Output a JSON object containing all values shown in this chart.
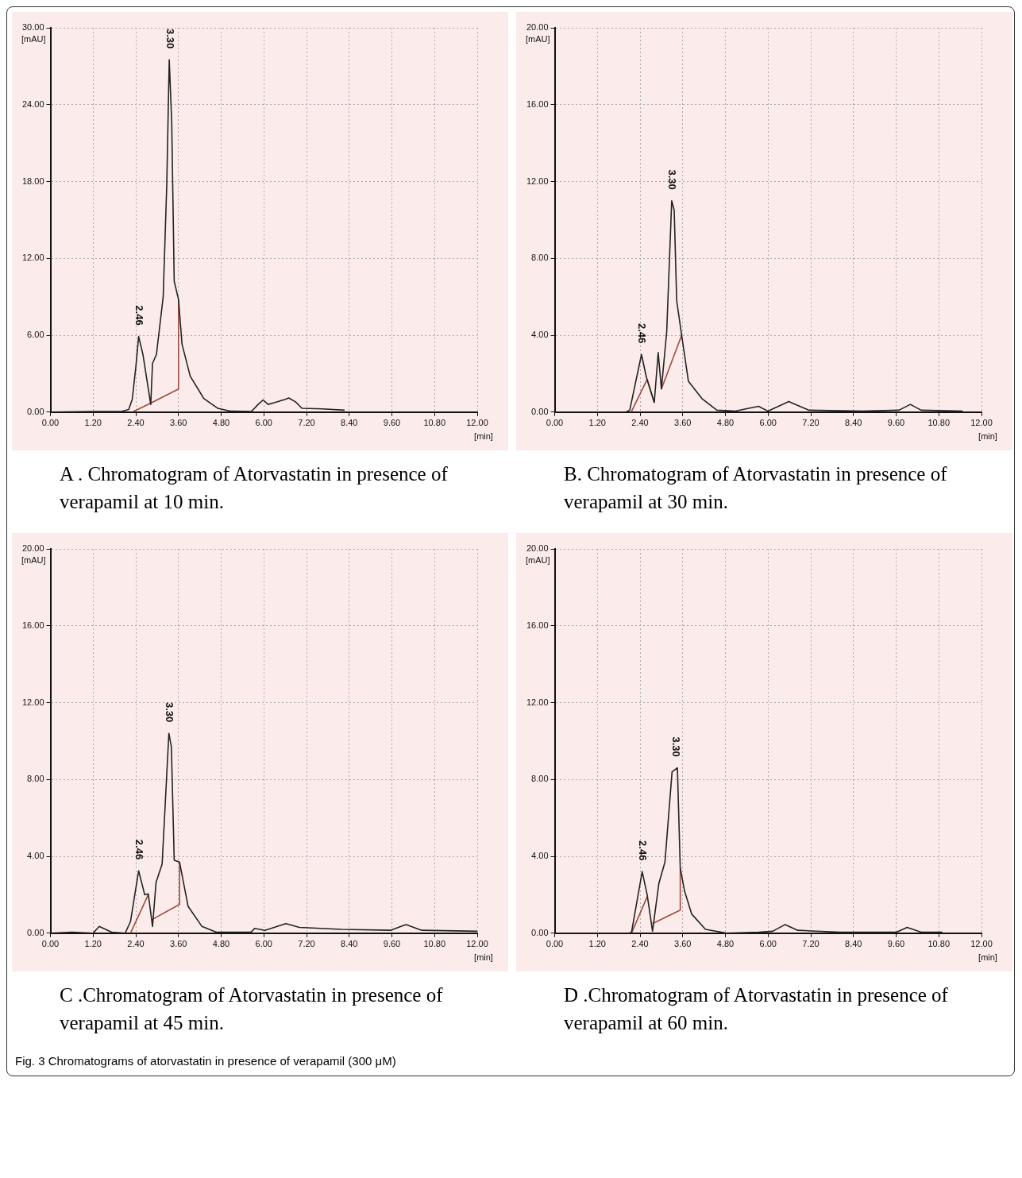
{
  "chart_data": [
    {
      "type": "line",
      "title": "A . Chromatogram of Atorvastatin in presence of verapamil at 10 min.",
      "xlabel": "[min]",
      "ylabel": "[mAU]",
      "xlim": [
        0,
        12
      ],
      "ylim": [
        0,
        30
      ],
      "xticks": [
        {
          "value": 0,
          "label": "0.00"
        },
        {
          "value": 1.2,
          "label": "1.20"
        },
        {
          "value": 2.4,
          "label": "2.40"
        },
        {
          "value": 3.6,
          "label": "3.60"
        },
        {
          "value": 4.8,
          "label": "4.80"
        },
        {
          "value": 6,
          "label": "6.00"
        },
        {
          "value": 7.2,
          "label": "7.20"
        },
        {
          "value": 8.4,
          "label": "8.40"
        },
        {
          "value": 9.6,
          "label": "9.60"
        },
        {
          "value": 10.8,
          "label": "10.80"
        },
        {
          "value": 12,
          "label": "12.00"
        }
      ],
      "yticks": [
        {
          "value": 0,
          "label": "0.00"
        },
        {
          "value": 6,
          "label": "6.00"
        },
        {
          "value": 12,
          "label": "12.00"
        },
        {
          "value": 18,
          "label": "18.00"
        },
        {
          "value": 24,
          "label": "24.00"
        },
        {
          "value": 30,
          "label": "30.00"
        }
      ],
      "grid": true,
      "annotations": [
        {
          "text": "2.46",
          "x": 2.48,
          "y": 5.9
        },
        {
          "text": "3.30",
          "x": 3.34,
          "y": 27.5
        }
      ],
      "series": [
        {
          "color": "#222222",
          "x": [
            0,
            1.2,
            2.0,
            2.2,
            2.3,
            2.4,
            2.48,
            2.6,
            2.82,
            2.87,
            2.98,
            3.17,
            3.27,
            3.34,
            3.41,
            3.48,
            3.6,
            3.7,
            3.93,
            4.31,
            4.7,
            5.08,
            5.65,
            5.84,
            5.98,
            6.12,
            6.31,
            6.6,
            6.7,
            6.89,
            7.07,
            7.65,
            8.27
          ],
          "values": [
            0,
            0.05,
            0.05,
            0.2,
            1,
            3.5,
            5.9,
            4.5,
            0.6,
            3.8,
            4.5,
            9,
            17.7,
            27.5,
            22.6,
            10.2,
            8.8,
            5.3,
            2.8,
            1.07,
            0.3,
            0.07,
            0.05,
            0.6,
            0.95,
            0.6,
            0.75,
            1.0,
            1.1,
            0.8,
            0.3,
            0.25,
            0.15
          ]
        },
        {
          "color": "#9c4a3c",
          "x": [
            2.3,
            2.82,
            3.6,
            3.6
          ],
          "values": [
            0,
            0.7,
            1.8,
            8.8
          ]
        }
      ]
    },
    {
      "type": "line",
      "title": "B. Chromatogram of Atorvastatin in presence of verapamil at 30 min.",
      "xlabel": "[min]",
      "ylabel": "[mAU]",
      "xlim": [
        0,
        12
      ],
      "ylim": [
        0,
        20
      ],
      "xticks": [
        {
          "value": 0,
          "label": "0.00"
        },
        {
          "value": 1.2,
          "label": "1.20"
        },
        {
          "value": 2.4,
          "label": "2.40"
        },
        {
          "value": 3.6,
          "label": "3.60"
        },
        {
          "value": 4.8,
          "label": "4.80"
        },
        {
          "value": 6,
          "label": "6.00"
        },
        {
          "value": 7.2,
          "label": "7.20"
        },
        {
          "value": 8.4,
          "label": "8.40"
        },
        {
          "value": 9.6,
          "label": "9.60"
        },
        {
          "value": 10.8,
          "label": "10.80"
        },
        {
          "value": 12,
          "label": "12.00"
        }
      ],
      "yticks": [
        {
          "value": 0,
          "label": "0.00"
        },
        {
          "value": 4,
          "label": "4.00"
        },
        {
          "value": 8,
          "label": "8.00"
        },
        {
          "value": 12,
          "label": "12.00"
        },
        {
          "value": 16,
          "label": "16.00"
        },
        {
          "value": 20,
          "label": "20.00"
        }
      ],
      "grid": true,
      "annotations": [
        {
          "text": "2.46",
          "x": 2.44,
          "y": 3.0
        },
        {
          "text": "3.30",
          "x": 3.29,
          "y": 11.0
        }
      ],
      "series": [
        {
          "color": "#222222",
          "x": [
            0,
            2.0,
            2.11,
            2.44,
            2.58,
            2.8,
            2.91,
            3.0,
            3.15,
            3.29,
            3.36,
            3.43,
            3.57,
            3.76,
            4.14,
            4.56,
            5.08,
            5.73,
            6.0,
            6.58,
            7.14,
            8.65,
            9.68,
            10.0,
            10.3,
            11.47
          ],
          "values": [
            0,
            0,
            0.1,
            3.0,
            1.8,
            0.5,
            3.1,
            1.2,
            4.2,
            11.0,
            10.5,
            5.8,
            4.0,
            1.6,
            0.7,
            0.1,
            0.05,
            0.3,
            0.05,
            0.55,
            0.1,
            0.05,
            0.1,
            0.4,
            0.1,
            0.05
          ]
        },
        {
          "color": "#9c4a3c",
          "x": [
            2.15,
            2.6,
            2.8,
            2.9,
            3.0,
            3.57
          ],
          "values": [
            0,
            1.7,
            0.5,
            null,
            1.2,
            4.0
          ]
        }
      ]
    },
    {
      "type": "line",
      "title": "C .Chromatogram of Atorvastatin in presence of verapamil at 45 min.",
      "xlabel": "[min]",
      "ylabel": "[mAU]",
      "xlim": [
        0,
        12
      ],
      "ylim": [
        0,
        20
      ],
      "xticks": [
        {
          "value": 0,
          "label": "0.00"
        },
        {
          "value": 1.2,
          "label": "1.20"
        },
        {
          "value": 2.4,
          "label": "2.40"
        },
        {
          "value": 3.6,
          "label": "3.60"
        },
        {
          "value": 4.8,
          "label": "4.80"
        },
        {
          "value": 6,
          "label": "6.00"
        },
        {
          "value": 7.2,
          "label": "7.20"
        },
        {
          "value": 8.4,
          "label": "8.40"
        },
        {
          "value": 9.6,
          "label": "9.60"
        },
        {
          "value": 10.8,
          "label": "10.80"
        },
        {
          "value": 12,
          "label": "12.00"
        }
      ],
      "yticks": [
        {
          "value": 0,
          "label": "0.00"
        },
        {
          "value": 4,
          "label": "4.00"
        },
        {
          "value": 8,
          "label": "8.00"
        },
        {
          "value": 12,
          "label": "12.00"
        },
        {
          "value": 16,
          "label": "16.00"
        },
        {
          "value": 20,
          "label": "20.00"
        }
      ],
      "grid": true,
      "annotations": [
        {
          "text": "2.46",
          "x": 2.48,
          "y": 3.25
        },
        {
          "text": "3.30",
          "x": 3.33,
          "y": 10.4
        }
      ],
      "series": [
        {
          "color": "#222222",
          "x": [
            0,
            0.6,
            1.2,
            1.37,
            1.72,
            2.1,
            2.25,
            2.48,
            2.65,
            2.75,
            2.87,
            2.97,
            3.14,
            3.33,
            3.4,
            3.48,
            3.63,
            3.87,
            4.26,
            4.66,
            5.64,
            5.74,
            6.03,
            6.62,
            7.0,
            8.19,
            9.56,
            10.0,
            10.44,
            12
          ],
          "values": [
            0,
            0.05,
            0,
            0.35,
            0.05,
            0,
            0.6,
            3.25,
            2.0,
            2.05,
            0.35,
            2.65,
            3.6,
            10.4,
            9.7,
            3.8,
            3.7,
            1.4,
            0.35,
            0.05,
            0.05,
            0.25,
            0.15,
            0.5,
            0.3,
            0.2,
            0.15,
            0.45,
            0.15,
            0.1
          ]
        },
        {
          "color": "#9c4a3c",
          "x": [
            2.25,
            2.75,
            2.8,
            2.85,
            3.63,
            3.63
          ],
          "values": [
            0,
            2.0,
            null,
            0.7,
            1.5,
            3.7
          ]
        }
      ]
    },
    {
      "type": "line",
      "title": "D .Chromatogram of Atorvastatin in presence of verapamil at 60 min.",
      "xlabel": "[min]",
      "ylabel": "[mAU]",
      "xlim": [
        0,
        12
      ],
      "ylim": [
        0,
        20
      ],
      "xticks": [
        {
          "value": 0,
          "label": "0.00"
        },
        {
          "value": 1.2,
          "label": "1.20"
        },
        {
          "value": 2.4,
          "label": "2.40"
        },
        {
          "value": 3.6,
          "label": "3.60"
        },
        {
          "value": 4.8,
          "label": "4.80"
        },
        {
          "value": 6,
          "label": "6.00"
        },
        {
          "value": 7.2,
          "label": "7.20"
        },
        {
          "value": 8.4,
          "label": "8.40"
        },
        {
          "value": 9.6,
          "label": "9.60"
        },
        {
          "value": 10.8,
          "label": "10.80"
        },
        {
          "value": 12,
          "label": "12.00"
        }
      ],
      "yticks": [
        {
          "value": 0,
          "label": "0.00"
        },
        {
          "value": 4,
          "label": "4.00"
        },
        {
          "value": 8,
          "label": "8.00"
        },
        {
          "value": 12,
          "label": "12.00"
        },
        {
          "value": 16,
          "label": "16.00"
        },
        {
          "value": 20,
          "label": "20.00"
        }
      ],
      "grid": true,
      "annotations": [
        {
          "text": "2.46",
          "x": 2.46,
          "y": 3.2
        },
        {
          "text": "3.30",
          "x": 3.4,
          "y": 8.6
        },
        "Fig. 3 Chromatograms of atorvastatin in presence of verapamil (300 μM)"
      ],
      "series": [
        {
          "color": "#222222",
          "x": [
            0,
            2.1,
            2.16,
            2.46,
            2.6,
            2.75,
            2.93,
            3.1,
            3.3,
            3.45,
            3.53,
            3.65,
            3.85,
            4.24,
            4.84,
            5.74,
            6.13,
            6.48,
            6.83,
            8.02,
            9.61,
            9.91,
            10.3,
            10.9
          ],
          "values": [
            0,
            0,
            0.05,
            3.2,
            2.0,
            0.1,
            2.6,
            3.7,
            8.4,
            8.6,
            3.4,
            2.2,
            1.0,
            0.2,
            0,
            0.05,
            0.1,
            0.45,
            0.15,
            0.05,
            0.05,
            0.3,
            0.05,
            0.05
          ]
        },
        {
          "color": "#9c4a3c",
          "x": [
            2.16,
            2.6,
            2.7,
            2.75,
            3.53,
            3.53
          ],
          "values": [
            0,
            1.9,
            null,
            0.5,
            1.2,
            3.4
          ]
        }
      ]
    }
  ]
}
